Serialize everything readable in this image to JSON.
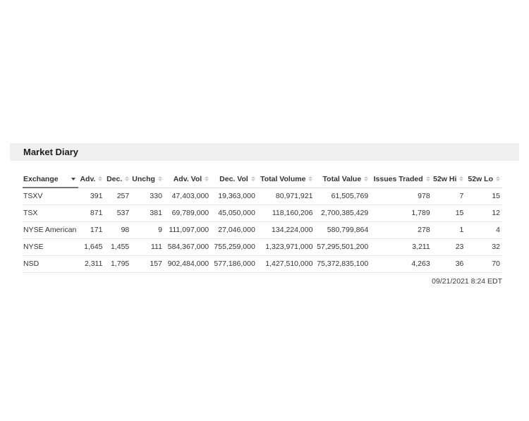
{
  "panel": {
    "title": "Market Diary",
    "timestamp": "09/21/2021 8:24 EDT"
  },
  "table": {
    "columns": [
      {
        "label": "Exchange",
        "align": "left",
        "sortable": false,
        "has_dropdown": true,
        "sorted": true
      },
      {
        "label": "Adv.",
        "align": "right",
        "sortable": true
      },
      {
        "label": "Dec.",
        "align": "right",
        "sortable": true
      },
      {
        "label": "Unchg",
        "align": "right",
        "sortable": true
      },
      {
        "label": "Adv. Vol",
        "align": "right",
        "sortable": true
      },
      {
        "label": "Dec. Vol",
        "align": "right",
        "sortable": true
      },
      {
        "label": "Total Volume",
        "align": "right",
        "sortable": true
      },
      {
        "label": "Total Value",
        "align": "right",
        "sortable": true
      },
      {
        "label": "Issues Traded",
        "align": "right",
        "sortable": true
      },
      {
        "label": "52w Hi",
        "align": "right",
        "sortable": true
      },
      {
        "label": "52w Lo",
        "align": "right",
        "sortable": true
      }
    ],
    "rows": [
      [
        "TSXV",
        "391",
        "257",
        "330",
        "47,403,000",
        "19,363,000",
        "80,971,921",
        "61,505,769",
        "978",
        "7",
        "15"
      ],
      [
        "TSX",
        "871",
        "537",
        "381",
        "69,789,000",
        "45,050,000",
        "118,160,206",
        "2,700,385,429",
        "1,789",
        "15",
        "12"
      ],
      [
        "NYSE American",
        "171",
        "98",
        "9",
        "111,097,000",
        "27,046,000",
        "134,224,000",
        "580,799,864",
        "278",
        "1",
        "4"
      ],
      [
        "NYSE",
        "1,645",
        "1,455",
        "111",
        "584,367,000",
        "755,259,000",
        "1,323,971,000",
        "57,295,501,200",
        "3,211",
        "23",
        "32"
      ],
      [
        "NSD",
        "2,311",
        "1,795",
        "157",
        "902,484,000",
        "577,186,000",
        "1,427,510,000",
        "75,372,835,100",
        "4,263",
        "36",
        "70"
      ]
    ]
  },
  "colors": {
    "panel_header_bg": "#f0f0f0",
    "text": "#333333",
    "row_divider": "#e7e7e7",
    "active_column_underline": "#777777",
    "sort_icon": "#c9c9c9"
  }
}
